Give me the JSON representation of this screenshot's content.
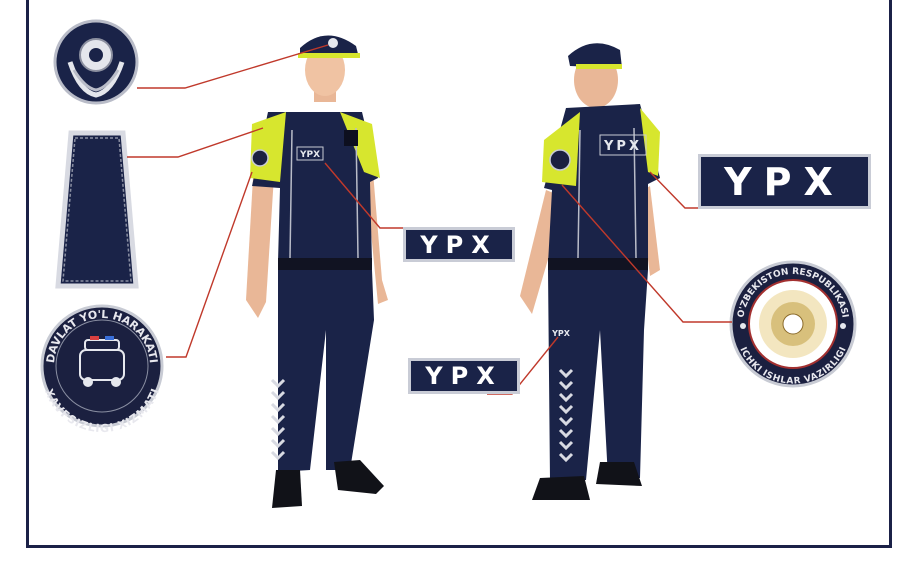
{
  "tags": {
    "front_chest": "YPX",
    "back_shoulder": "YPX",
    "pocket": "YPX"
  },
  "shirt_tag_front": "YPX",
  "shirt_tag_back": "YPX",
  "trouser_tag": "YPX",
  "badge_left": {
    "top_text": "DAVLAT YO'L HARAKATI",
    "bottom_text": "XAVFSIZLIGI XIZMATI"
  },
  "badge_right": {
    "top_text": "O'ZBEKISTON RESPUBLIKASI",
    "bottom_text": "ICHKI ISHLAR VAZIRLIGI"
  },
  "colors": {
    "navy": "#1a2348",
    "hi_vis": "#d7e62e",
    "leader_line": "#c0392b",
    "frame": "#1b2147"
  }
}
